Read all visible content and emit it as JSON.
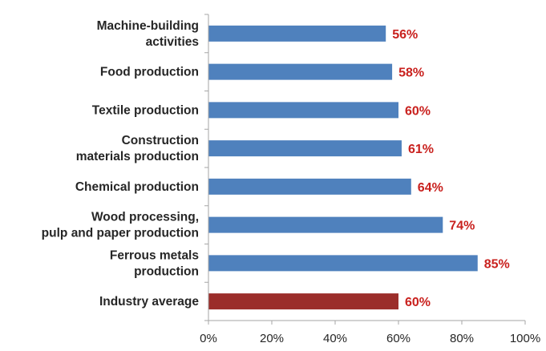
{
  "chart_data": {
    "type": "bar",
    "orientation": "horizontal",
    "title": "",
    "xlabel": "",
    "ylabel": "",
    "xlim": [
      0,
      100
    ],
    "grid": false,
    "legend": "none",
    "categories": [
      [
        "Machine-building",
        "activities"
      ],
      [
        "Food production"
      ],
      [
        "Textile production"
      ],
      [
        "Construction",
        "materials production"
      ],
      [
        "Chemical production"
      ],
      [
        "Wood processing,",
        "pulp and paper production"
      ],
      [
        "Ferrous metals",
        "production"
      ],
      [
        "Industry average"
      ]
    ],
    "values": [
      56,
      58,
      60,
      61,
      64,
      74,
      85,
      60
    ],
    "value_labels": [
      "56%",
      "58%",
      "60%",
      "61%",
      "64%",
      "74%",
      "85%",
      "60%"
    ],
    "bar_colors": [
      "#4f81bd",
      "#4f81bd",
      "#4f81bd",
      "#4f81bd",
      "#4f81bd",
      "#4f81bd",
      "#4f81bd",
      "#9b2d2a"
    ],
    "x_ticks": [
      0,
      20,
      40,
      60,
      80,
      100
    ],
    "x_tick_labels": [
      "0%",
      "20%",
      "40%",
      "60%",
      "80%",
      "100%"
    ],
    "value_label_color": "#c9211e",
    "axis_color": "#a6a6a6"
  }
}
